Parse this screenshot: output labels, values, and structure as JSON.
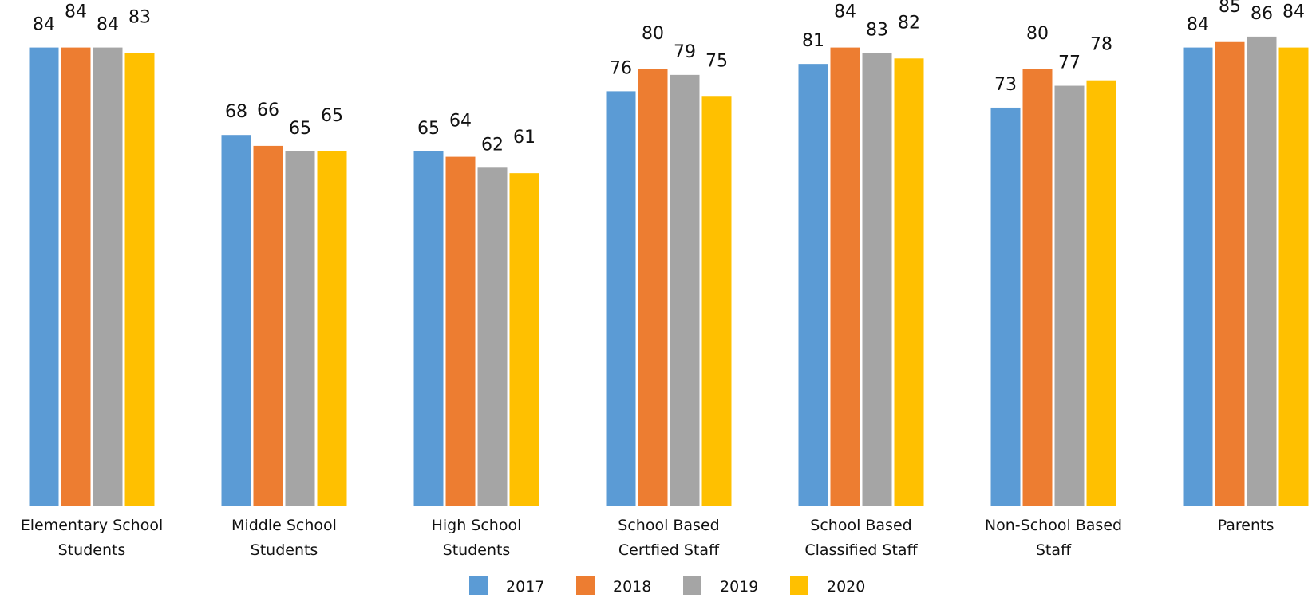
{
  "chart_data": {
    "type": "bar",
    "title": "",
    "xlabel": "",
    "ylabel": "",
    "categories": [
      [
        "Elementary School",
        "Students"
      ],
      [
        "Middle School",
        "Students"
      ],
      [
        "High School",
        "Students"
      ],
      [
        "School Based",
        "Certfied Staff"
      ],
      [
        "School Based",
        "Classified Staff"
      ],
      [
        "Non-School Based",
        "Staff"
      ],
      [
        "Parents"
      ]
    ],
    "series": [
      {
        "name": "2017",
        "color": "#5B9BD5",
        "values": [
          84,
          68,
          65,
          76,
          81,
          73,
          84
        ]
      },
      {
        "name": "2018",
        "color": "#ED7D31",
        "values": [
          84,
          66,
          64,
          80,
          84,
          80,
          85
        ]
      },
      {
        "name": "2019",
        "color": "#A5A5A5",
        "values": [
          84,
          65,
          62,
          79,
          83,
          77,
          86
        ]
      },
      {
        "name": "2020",
        "color": "#FFC000",
        "values": [
          83,
          65,
          61,
          75,
          82,
          78,
          84
        ]
      }
    ],
    "ylim": [
      0,
      92
    ],
    "grid": false,
    "legend": "bottom-center"
  }
}
